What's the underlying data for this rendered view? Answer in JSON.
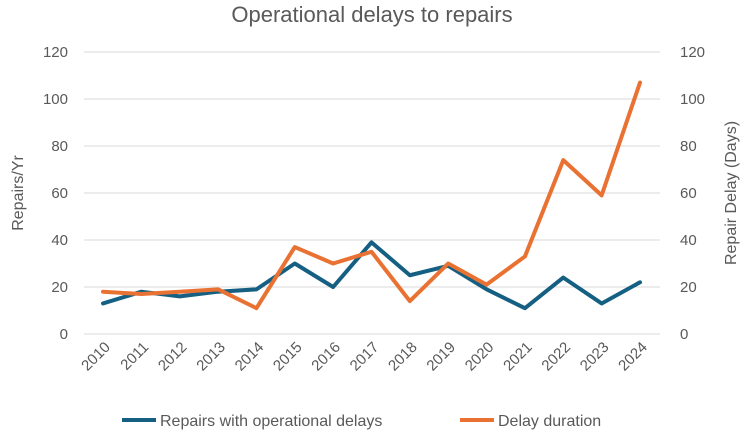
{
  "chart_data": {
    "type": "line",
    "title": "Operational delays to repairs",
    "xlabel": "",
    "ylabel": "Repairs/Yr",
    "y2label": "Repair Delay (Days)",
    "ylim": [
      0,
      120
    ],
    "y2lim": [
      0,
      120
    ],
    "yticks": [
      "0",
      "20",
      "40",
      "60",
      "80",
      "100",
      "120"
    ],
    "categories": [
      "2010",
      "2011",
      "2012",
      "2013",
      "2014",
      "2015",
      "2016",
      "2017",
      "2018",
      "2019",
      "2020",
      "2021",
      "2022",
      "2023",
      "2024"
    ],
    "grid": true,
    "legend": "bottom",
    "series": [
      {
        "name": "Repairs with operational delays",
        "axis": "left",
        "color": "#156082",
        "values": [
          13,
          18,
          16,
          18,
          19,
          30,
          20,
          39,
          25,
          29,
          19,
          11,
          24,
          13,
          22
        ]
      },
      {
        "name": "Delay duration",
        "axis": "right",
        "color": "#E97132",
        "values": [
          18,
          17,
          18,
          19,
          11,
          37,
          30,
          35,
          14,
          30,
          21,
          33,
          74,
          59,
          107
        ]
      }
    ]
  }
}
